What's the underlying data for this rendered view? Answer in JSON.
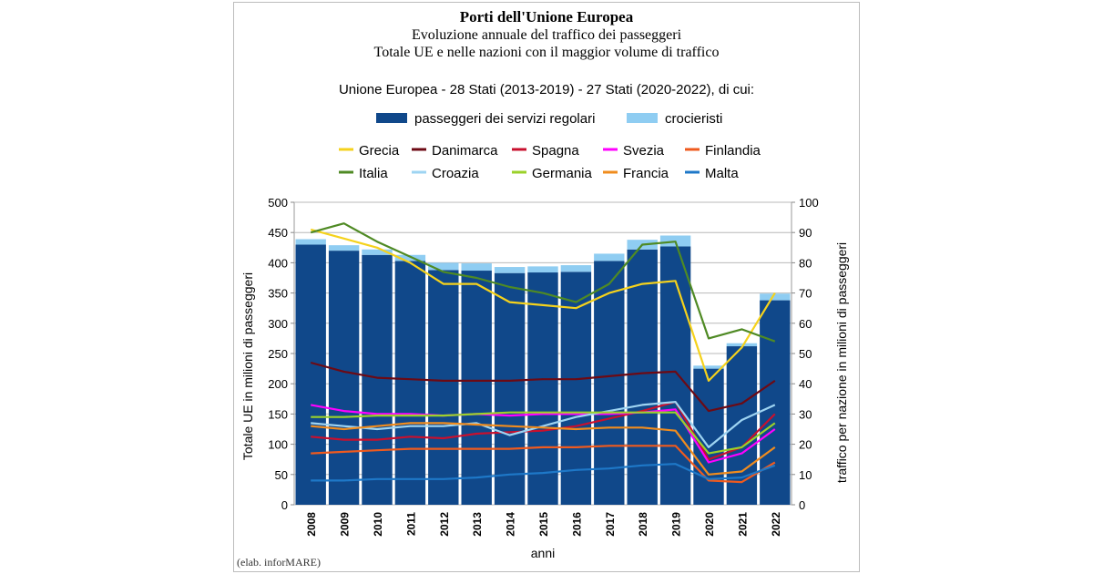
{
  "title": "Porti dell'Unione Europea",
  "subtitle1": "Evoluzione annuale del traffico dei passeggeri",
  "subtitle2": "Totale UE e nelle nazioni con il maggior volume di traffico",
  "credit": "(elab. inforMARE)",
  "chart_data": {
    "type": "bar",
    "title": "Porti dell'Unione Europea",
    "eu_legend_heading": "Unione Europea - 28 Stati (2013-2019) - 27 Stati (2020-2022), di cui:",
    "categories": [
      "2008",
      "2009",
      "2010",
      "2011",
      "2012",
      "2013",
      "2014",
      "2015",
      "2016",
      "2017",
      "2018",
      "2019",
      "2020",
      "2021",
      "2022"
    ],
    "xlabel": "anni",
    "ylabel": "Totale UE in  milioni di passeggeri",
    "y2label": "traffico per nazione in milioni di passeggeri",
    "ylim": [
      0,
      500
    ],
    "y2lim": [
      0,
      100
    ],
    "yticks": [
      "0",
      "50",
      "100",
      "150",
      "200",
      "250",
      "300",
      "350",
      "400",
      "450",
      "500"
    ],
    "y2ticks": [
      "0",
      "10",
      "20",
      "30",
      "40",
      "50",
      "60",
      "70",
      "80",
      "90",
      "100"
    ],
    "grid": true,
    "bar_series": [
      {
        "name": "passeggeri dei servizi regolari",
        "color": "#10488a",
        "values": [
          430,
          420,
          413,
          403,
          388,
          387,
          383,
          384,
          385,
          403,
          422,
          427,
          225,
          262,
          338
        ]
      },
      {
        "name": "crocieristi",
        "color": "#8fcdf2",
        "values": [
          9,
          9,
          9,
          10,
          12,
          12,
          10,
          10,
          11,
          12,
          16,
          18,
          5,
          5,
          11
        ]
      }
    ],
    "line_series": [
      {
        "name": "Grecia",
        "color": "#f5d21c",
        "values": [
          91,
          88,
          85,
          80,
          73,
          73,
          67,
          66,
          65,
          70,
          73,
          74,
          41,
          52,
          70
        ]
      },
      {
        "name": "Danimarca",
        "color": "#6d0a14",
        "values": [
          47,
          44,
          42,
          41.5,
          41,
          41,
          41,
          41.5,
          41.5,
          42.5,
          43.5,
          44,
          31,
          33.5,
          41
        ]
      },
      {
        "name": "Spagna",
        "color": "#c8102e",
        "values": [
          22.5,
          21.5,
          21.5,
          22.5,
          22,
          23.5,
          24,
          24.5,
          26,
          28.5,
          31,
          34,
          15,
          19,
          30
        ]
      },
      {
        "name": "Svezia",
        "color": "#ff00ff",
        "values": [
          33,
          31,
          30,
          30,
          29.5,
          30,
          29.5,
          30,
          30,
          30,
          30.5,
          31.5,
          14,
          17,
          25
        ]
      },
      {
        "name": "Finlandia",
        "color": "#ef5a1e",
        "values": [
          17,
          17.5,
          18,
          18.5,
          18.5,
          18.5,
          18.5,
          19,
          19,
          19.5,
          19.5,
          19.5,
          8,
          7.5,
          14
        ]
      },
      {
        "name": "Italia",
        "color": "#4f8a24",
        "values": [
          90,
          93,
          87,
          82,
          77,
          75,
          72,
          70,
          67,
          73,
          86,
          87,
          55,
          58,
          54
        ]
      },
      {
        "name": "Croazia",
        "color": "#9ed4f2",
        "values": [
          27,
          26,
          25,
          26,
          26,
          27,
          23,
          26,
          29,
          31,
          33,
          34,
          19,
          28,
          33
        ]
      },
      {
        "name": "Germania",
        "color": "#9bd12a",
        "values": [
          29,
          29,
          29.5,
          29.5,
          29.5,
          30,
          30.5,
          30.5,
          30.5,
          30.5,
          30.5,
          30.5,
          17,
          19,
          27
        ]
      },
      {
        "name": "Francia",
        "color": "#f08c1e",
        "values": [
          26,
          25,
          26,
          27,
          27,
          26.5,
          26,
          25.5,
          25,
          25.5,
          25.5,
          24.5,
          10,
          11,
          19
        ]
      },
      {
        "name": "Malta",
        "color": "#1e78c8",
        "values": [
          8,
          8,
          8.5,
          8.5,
          8.5,
          9,
          10,
          10.5,
          11.5,
          12,
          13,
          13.5,
          8.5,
          9,
          13
        ]
      }
    ]
  }
}
